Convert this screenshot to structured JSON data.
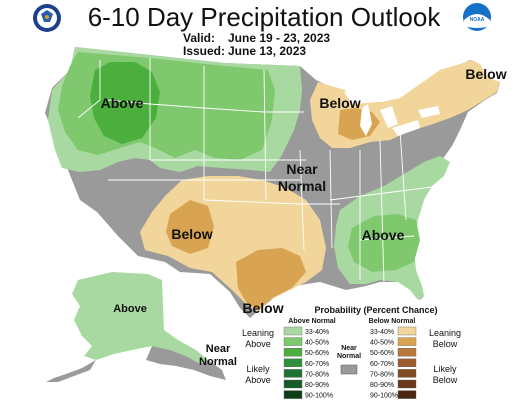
{
  "header": {
    "title": "6-10 Day Precipitation Outlook",
    "valid_label": "Valid:",
    "valid_value": "June 19 - 23, 2023",
    "issued_label": "Issued:",
    "issued_value": "June 13, 2023"
  },
  "logos": {
    "left": "commerce-seal",
    "right": "noaa-logo",
    "right_text": "NOAA"
  },
  "map_labels": {
    "above_nw": "Above",
    "below_mw": "Below",
    "below_ne": "Below",
    "near": "Near",
    "normal": "Normal",
    "below_sw": "Below",
    "above_se": "Above",
    "below_tx": "Below",
    "above_ak": "Above",
    "near_ak": "Near",
    "normal_ak": "Normal"
  },
  "legend": {
    "title": "Probability (Percent Chance)",
    "above_header": "Above Normal",
    "below_header": "Below Normal",
    "near_header_1": "Near",
    "near_header_2": "Normal",
    "leaning_above_1": "Leaning",
    "leaning_above_2": "Above",
    "likely_above_1": "Likely",
    "likely_above_2": "Above",
    "leaning_below_1": "Leaning",
    "leaning_below_2": "Below",
    "likely_below_1": "Likely",
    "likely_below_2": "Below",
    "above": [
      {
        "label": "33-40%",
        "color": "#a8d9a0"
      },
      {
        "label": "40-50%",
        "color": "#80c86e"
      },
      {
        "label": "50-60%",
        "color": "#4cae3c"
      },
      {
        "label": "60-70%",
        "color": "#2f8f3a"
      },
      {
        "label": "70-80%",
        "color": "#1f7232"
      },
      {
        "label": "80-90%",
        "color": "#165a28"
      },
      {
        "label": "90-100%",
        "color": "#0c3f18"
      }
    ],
    "below": [
      {
        "label": "33-40%",
        "color": "#f2d59a"
      },
      {
        "label": "40-50%",
        "color": "#d9a451"
      },
      {
        "label": "50-60%",
        "color": "#b8783a"
      },
      {
        "label": "60-70%",
        "color": "#9c5c2c"
      },
      {
        "label": "70-80%",
        "color": "#824a22"
      },
      {
        "label": "80-90%",
        "color": "#6a391a"
      },
      {
        "label": "90-100%",
        "color": "#4d2610"
      }
    ],
    "near_color": "#9a9a9a"
  },
  "colors": {
    "above_33": "#a8d9a0",
    "above_40": "#80c86e",
    "above_50": "#4cae3c",
    "below_33": "#f2d59a",
    "below_40": "#d9a451",
    "near": "#9a9a9a",
    "water": "#ffffff"
  }
}
